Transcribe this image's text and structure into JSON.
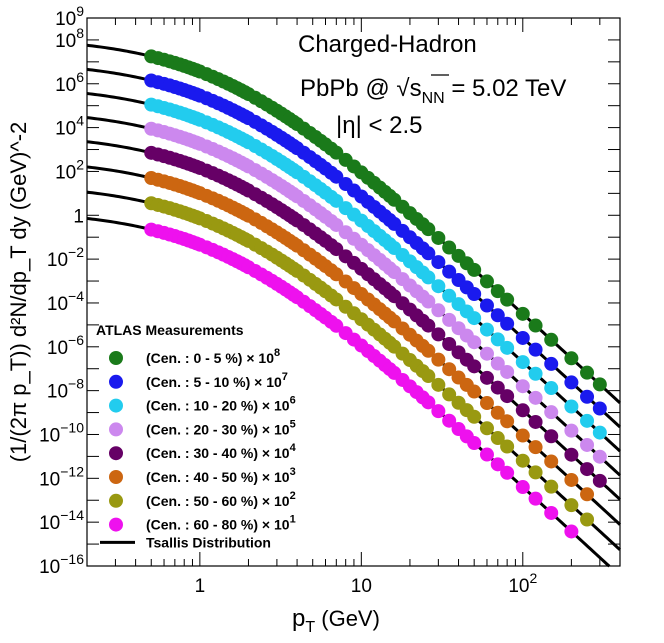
{
  "chart_data": {
    "type": "scatter",
    "title": "",
    "xlabel": "p",
    "xlabel_sub": "T",
    "xlabel_unit": " (GeV)",
    "ylabel": "(1/(2π p_T)) d²N/dp_T dy (GeV)^-2",
    "x_scale": "log",
    "y_scale": "log",
    "xlim": [
      0.2,
      400
    ],
    "ylim_exp": [
      -16,
      9
    ],
    "x_ticks": [
      {
        "value": 1,
        "label": "1"
      },
      {
        "value": 10,
        "label": "10"
      },
      {
        "value": 100,
        "label": "10",
        "sup": "2"
      }
    ],
    "y_ticks": [
      {
        "exp": -16,
        "label": "10",
        "sup": "−16"
      },
      {
        "exp": -14,
        "label": "10",
        "sup": "−14"
      },
      {
        "exp": -12,
        "label": "10",
        "sup": "−12"
      },
      {
        "exp": -10,
        "label": "10",
        "sup": "−10"
      },
      {
        "exp": -8,
        "label": "10",
        "sup": "−8"
      },
      {
        "exp": -6,
        "label": "10",
        "sup": "−6"
      },
      {
        "exp": -4,
        "label": "10",
        "sup": "−4"
      },
      {
        "exp": -2,
        "label": "10",
        "sup": "−2"
      },
      {
        "exp": 0,
        "label": "1",
        "sup": ""
      },
      {
        "exp": 2,
        "label": "10",
        "sup": "2"
      },
      {
        "exp": 4,
        "label": "10",
        "sup": "4"
      },
      {
        "exp": 6,
        "label": "10",
        "sup": "6"
      },
      {
        "exp": 8,
        "label": "10",
        "sup": "8"
      },
      {
        "exp": 9,
        "label": "10",
        "sup": "9"
      }
    ],
    "annotations": {
      "line1": "Charged-Hadron",
      "line2_pre": "PbPb @ ",
      "line2_sqrt": "√",
      "line2_s": "s",
      "line2_sub": "NN",
      "line2_post": " = 5.02 TeV",
      "line3": "|η| < 2.5"
    },
    "legend": {
      "title": "ATLAS Measurements",
      "fit_label": "Tsallis Distribution",
      "position": "bottom-left"
    },
    "fit_model": {
      "name": "Tsallis",
      "n": 6.8,
      "p0": 1.4
    },
    "series": [
      {
        "name": "(Cen. : 0 - 5 %) × 10",
        "sup": "8",
        "color": "#1a7a1a",
        "amplitude_exp": 8.15,
        "points_pt": [
          0.5,
          0.55,
          0.6,
          0.65,
          0.7,
          0.75,
          0.8,
          0.85,
          0.9,
          0.95,
          1.0,
          1.1,
          1.2,
          1.3,
          1.4,
          1.5,
          1.6,
          1.7,
          1.8,
          1.9,
          2.0,
          2.2,
          2.4,
          2.6,
          2.8,
          3.0,
          3.2,
          3.4,
          3.6,
          3.8,
          4.0,
          4.4,
          4.8,
          5.2,
          5.6,
          6.0,
          6.5,
          7.0,
          8.0,
          9.0,
          10.0,
          11.0,
          12.0,
          13.0,
          14.0,
          15.0,
          16.0,
          18.0,
          20.0,
          22.0,
          24.0,
          26.0,
          30.0,
          35.0,
          40.0,
          45.0,
          50.0,
          60.0,
          70.0,
          80.0,
          100.0,
          120.0,
          150.0,
          200.0,
          250.0,
          300.0
        ]
      },
      {
        "name": "(Cen. : 5 - 10 %) × 10",
        "sup": "7",
        "color": "#1a1aee",
        "amplitude_exp": 7.05,
        "points_pt": [
          0.5,
          0.55,
          0.6,
          0.65,
          0.7,
          0.75,
          0.8,
          0.85,
          0.9,
          0.95,
          1.0,
          1.1,
          1.2,
          1.3,
          1.4,
          1.5,
          1.6,
          1.7,
          1.8,
          1.9,
          2.0,
          2.2,
          2.4,
          2.6,
          2.8,
          3.0,
          3.2,
          3.4,
          3.6,
          3.8,
          4.0,
          4.4,
          4.8,
          5.2,
          5.6,
          6.0,
          6.5,
          7.0,
          8.0,
          9.0,
          10.0,
          11.0,
          12.0,
          13.0,
          14.0,
          15.0,
          16.0,
          18.0,
          20.0,
          22.0,
          24.0,
          26.0,
          30.0,
          35.0,
          40.0,
          45.0,
          50.0,
          60.0,
          70.0,
          80.0,
          100.0,
          120.0,
          150.0,
          200.0,
          250.0,
          300.0
        ]
      },
      {
        "name": "(Cen. : 10 - 20 %) × 10",
        "sup": "6",
        "color": "#22ccee",
        "amplitude_exp": 5.95,
        "points_pt": [
          0.5,
          0.55,
          0.6,
          0.65,
          0.7,
          0.75,
          0.8,
          0.85,
          0.9,
          0.95,
          1.0,
          1.1,
          1.2,
          1.3,
          1.4,
          1.5,
          1.6,
          1.7,
          1.8,
          1.9,
          2.0,
          2.2,
          2.4,
          2.6,
          2.8,
          3.0,
          3.2,
          3.4,
          3.6,
          3.8,
          4.0,
          4.4,
          4.8,
          5.2,
          5.6,
          6.0,
          6.5,
          7.0,
          8.0,
          9.0,
          10.0,
          11.0,
          12.0,
          13.0,
          14.0,
          15.0,
          16.0,
          18.0,
          20.0,
          22.0,
          24.0,
          26.0,
          30.0,
          35.0,
          40.0,
          45.0,
          50.0,
          60.0,
          70.0,
          80.0,
          100.0,
          120.0,
          150.0,
          200.0,
          250.0,
          300.0
        ]
      },
      {
        "name": "(Cen. : 20 - 30 %) × 10",
        "sup": "5",
        "color": "#cc88ee",
        "amplitude_exp": 4.85,
        "points_pt": [
          0.5,
          0.55,
          0.6,
          0.65,
          0.7,
          0.75,
          0.8,
          0.85,
          0.9,
          0.95,
          1.0,
          1.1,
          1.2,
          1.3,
          1.4,
          1.5,
          1.6,
          1.7,
          1.8,
          1.9,
          2.0,
          2.2,
          2.4,
          2.6,
          2.8,
          3.0,
          3.2,
          3.4,
          3.6,
          3.8,
          4.0,
          4.4,
          4.8,
          5.2,
          5.6,
          6.0,
          6.5,
          7.0,
          8.0,
          9.0,
          10.0,
          11.0,
          12.0,
          13.0,
          14.0,
          15.0,
          16.0,
          18.0,
          20.0,
          22.0,
          24.0,
          26.0,
          30.0,
          35.0,
          40.0,
          45.0,
          50.0,
          60.0,
          70.0,
          80.0,
          100.0,
          120.0,
          150.0,
          200.0,
          250.0,
          300.0
        ]
      },
      {
        "name": "(Cen. : 30 - 40 %) × 10",
        "sup": "4",
        "color": "#660066",
        "amplitude_exp": 3.75,
        "points_pt": [
          0.5,
          0.55,
          0.6,
          0.65,
          0.7,
          0.75,
          0.8,
          0.85,
          0.9,
          0.95,
          1.0,
          1.1,
          1.2,
          1.3,
          1.4,
          1.5,
          1.6,
          1.7,
          1.8,
          1.9,
          2.0,
          2.2,
          2.4,
          2.6,
          2.8,
          3.0,
          3.2,
          3.4,
          3.6,
          3.8,
          4.0,
          4.4,
          4.8,
          5.2,
          5.6,
          6.0,
          6.5,
          7.0,
          8.0,
          9.0,
          10.0,
          11.0,
          12.0,
          13.0,
          14.0,
          15.0,
          16.0,
          18.0,
          20.0,
          22.0,
          24.0,
          26.0,
          30.0,
          35.0,
          40.0,
          45.0,
          50.0,
          60.0,
          70.0,
          80.0,
          100.0,
          120.0,
          150.0,
          200.0,
          250.0,
          300.0
        ]
      },
      {
        "name": "(Cen. : 40 - 50 %) × 10",
        "sup": "3",
        "color": "#cc6611",
        "amplitude_exp": 2.6,
        "points_pt": [
          0.5,
          0.55,
          0.6,
          0.65,
          0.7,
          0.75,
          0.8,
          0.85,
          0.9,
          0.95,
          1.0,
          1.1,
          1.2,
          1.3,
          1.4,
          1.5,
          1.6,
          1.7,
          1.8,
          1.9,
          2.0,
          2.2,
          2.4,
          2.6,
          2.8,
          3.0,
          3.2,
          3.4,
          3.6,
          3.8,
          4.0,
          4.4,
          4.8,
          5.2,
          5.6,
          6.0,
          6.5,
          7.0,
          8.0,
          9.0,
          10.0,
          11.0,
          12.0,
          13.0,
          14.0,
          15.0,
          16.0,
          18.0,
          20.0,
          22.0,
          24.0,
          26.0,
          30.0,
          35.0,
          40.0,
          45.0,
          50.0,
          60.0,
          70.0,
          80.0,
          100.0,
          120.0,
          150.0,
          200.0,
          250.0
        ]
      },
      {
        "name": "(Cen. : 50 - 60 %) × 10",
        "sup": "2",
        "color": "#999911",
        "amplitude_exp": 1.45,
        "points_pt": [
          0.5,
          0.55,
          0.6,
          0.65,
          0.7,
          0.75,
          0.8,
          0.85,
          0.9,
          0.95,
          1.0,
          1.1,
          1.2,
          1.3,
          1.4,
          1.5,
          1.6,
          1.7,
          1.8,
          1.9,
          2.0,
          2.2,
          2.4,
          2.6,
          2.8,
          3.0,
          3.2,
          3.4,
          3.6,
          3.8,
          4.0,
          4.4,
          4.8,
          5.2,
          5.6,
          6.0,
          6.5,
          7.0,
          8.0,
          9.0,
          10.0,
          11.0,
          12.0,
          13.0,
          14.0,
          15.0,
          16.0,
          18.0,
          20.0,
          22.0,
          24.0,
          26.0,
          30.0,
          35.0,
          40.0,
          45.0,
          50.0,
          60.0,
          70.0,
          80.0,
          100.0,
          120.0,
          150.0,
          200.0,
          250.0
        ]
      },
      {
        "name": "(Cen. : 60 - 80 %) × 10",
        "sup": "1",
        "color": "#ee11ee",
        "amplitude_exp": 0.25,
        "points_pt": [
          0.5,
          0.55,
          0.6,
          0.65,
          0.7,
          0.75,
          0.8,
          0.85,
          0.9,
          0.95,
          1.0,
          1.1,
          1.2,
          1.3,
          1.4,
          1.5,
          1.6,
          1.7,
          1.8,
          1.9,
          2.0,
          2.2,
          2.4,
          2.6,
          2.8,
          3.0,
          3.2,
          3.4,
          3.6,
          3.8,
          4.0,
          4.4,
          4.8,
          5.2,
          5.6,
          6.0,
          6.5,
          7.0,
          8.0,
          9.0,
          10.0,
          11.0,
          12.0,
          13.0,
          14.0,
          15.0,
          16.0,
          18.0,
          20.0,
          22.0,
          24.0,
          26.0,
          30.0,
          35.0,
          40.0,
          45.0,
          50.0,
          60.0,
          70.0,
          80.0,
          100.0,
          120.0,
          150.0,
          200.0
        ]
      }
    ]
  }
}
